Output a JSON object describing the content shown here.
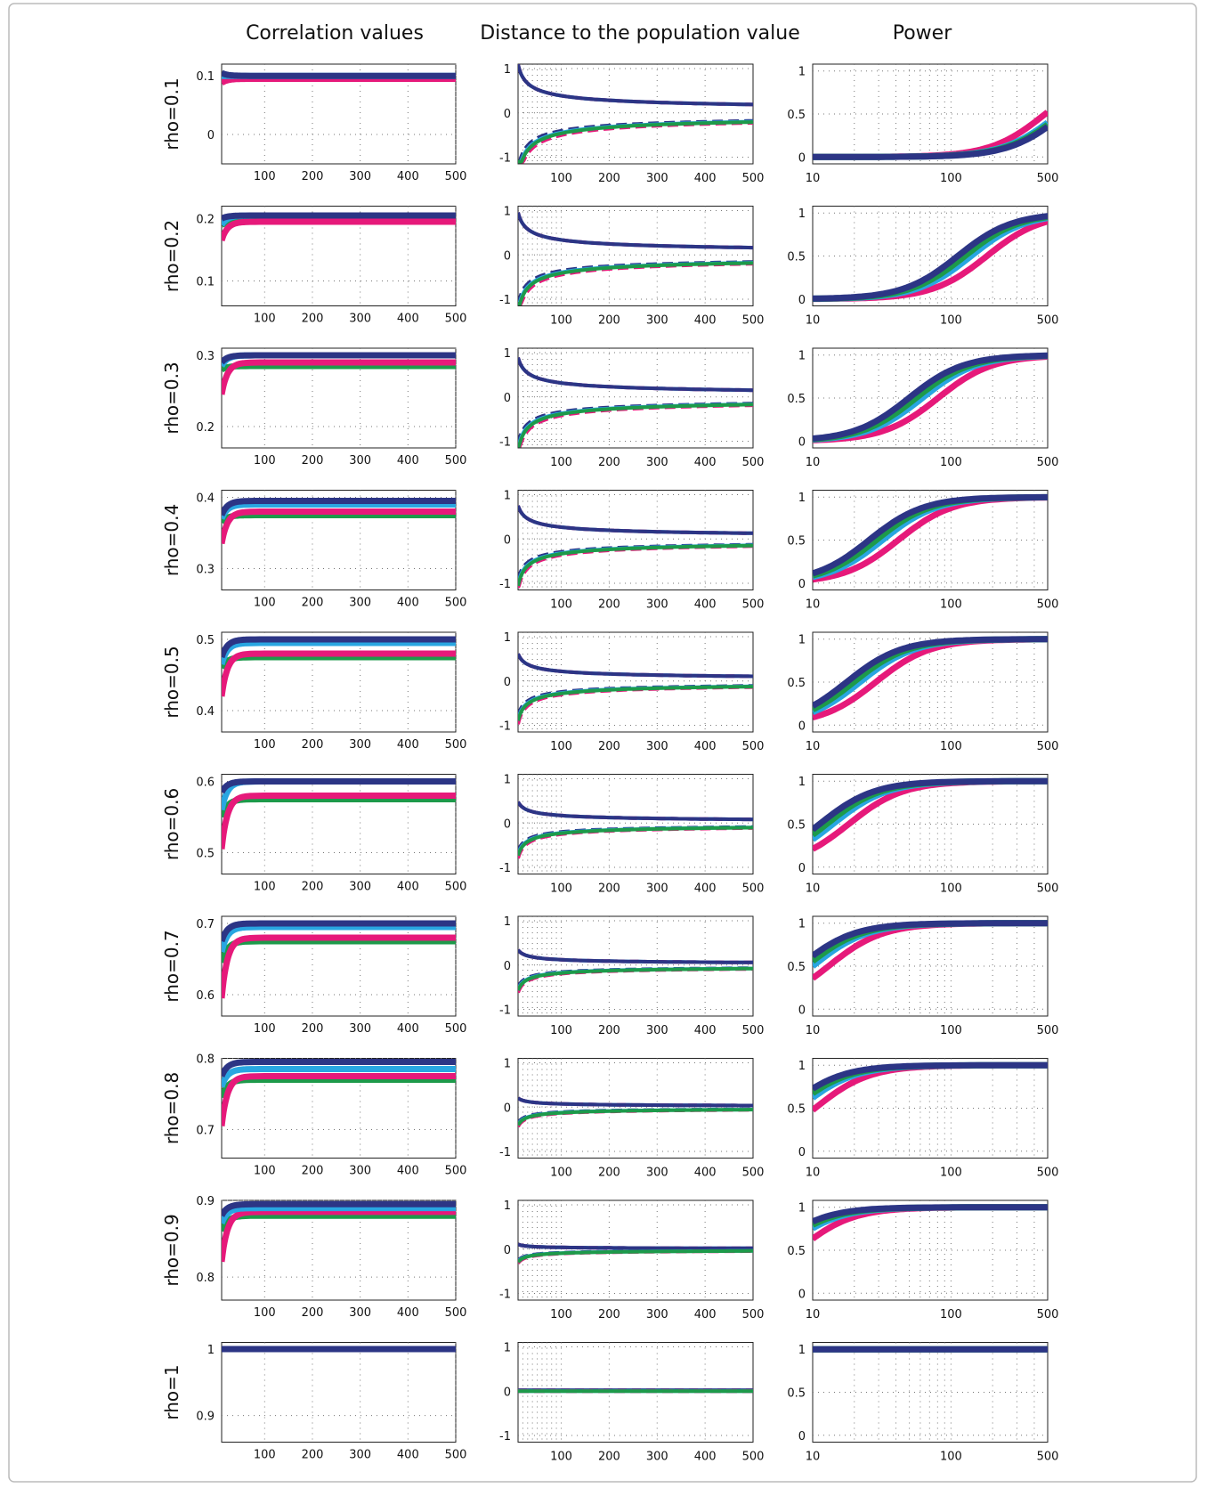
{
  "colors": {
    "navy": "#2c3585",
    "cyan": "#29a6e1",
    "magenta": "#e6197a",
    "green": "#1d9a4a",
    "orange": "#e5a23a"
  },
  "chart_data": {
    "type": "line",
    "column_titles": [
      "Correlation values",
      "Distance to the population value",
      "Power"
    ],
    "series_colors": [
      "navy",
      "cyan",
      "magenta",
      "green"
    ],
    "x_ticks_linear": [
      100,
      200,
      300,
      400,
      500
    ],
    "x_ticks_log": [
      10,
      100,
      500
    ],
    "x_range": [
      10,
      500
    ],
    "rows": [
      {
        "label": "rho=0.1",
        "rho": 0.1,
        "corr_ylim": [
          -0.05,
          0.12
        ],
        "corr_yticks": [
          0,
          0.1
        ],
        "corr_levels": [
          0.1,
          0.1,
          0.095,
          0.095
        ],
        "corr_start": [
          0.105,
          0.1,
          0.088,
          0.097
        ],
        "distance": 0.8,
        "power_x50": 600,
        "power_offsets": [
          1.1,
          1.0,
          0.8,
          1.05
        ]
      },
      {
        "label": "rho=0.2",
        "rho": 0.2,
        "corr_ylim": [
          0.06,
          0.22
        ],
        "corr_yticks": [
          0.1,
          0.2
        ],
        "corr_levels": [
          0.205,
          0.205,
          0.195,
          0.195
        ],
        "corr_start": [
          0.2,
          0.19,
          0.165,
          0.19
        ],
        "distance": 0.7,
        "power_x50": 140,
        "power_offsets": [
          0.8,
          1.0,
          1.3,
          0.9
        ]
      },
      {
        "label": "rho=0.3",
        "rho": 0.3,
        "corr_ylim": [
          0.17,
          0.31
        ],
        "corr_yticks": [
          0.2,
          0.3
        ],
        "corr_levels": [
          0.3,
          0.3,
          0.29,
          0.285
        ],
        "corr_start": [
          0.29,
          0.285,
          0.245,
          0.28
        ],
        "distance": 0.65,
        "power_x50": 62,
        "power_offsets": [
          0.8,
          1.0,
          1.3,
          0.9
        ]
      },
      {
        "label": "rho=0.4",
        "rho": 0.4,
        "corr_ylim": [
          0.27,
          0.41
        ],
        "corr_yticks": [
          0.3,
          0.4
        ],
        "corr_levels": [
          0.395,
          0.39,
          0.38,
          0.375
        ],
        "corr_start": [
          0.375,
          0.37,
          0.335,
          0.365
        ],
        "distance": 0.55,
        "power_x50": 32,
        "power_offsets": [
          0.8,
          1.0,
          1.3,
          0.9
        ]
      },
      {
        "label": "rho=0.5",
        "rho": 0.5,
        "corr_ylim": [
          0.37,
          0.51
        ],
        "corr_yticks": [
          0.4,
          0.5
        ],
        "corr_levels": [
          0.5,
          0.495,
          0.48,
          0.475
        ],
        "corr_start": [
          0.475,
          0.465,
          0.42,
          0.46
        ],
        "distance": 0.45,
        "power_x50": 22,
        "power_offsets": [
          0.8,
          1.0,
          1.3,
          0.9
        ]
      },
      {
        "label": "rho=0.6",
        "rho": 0.6,
        "corr_ylim": [
          0.47,
          0.61
        ],
        "corr_yticks": [
          0.5,
          0.6
        ],
        "corr_levels": [
          0.6,
          0.6,
          0.58,
          0.575
        ],
        "corr_start": [
          0.585,
          0.56,
          0.505,
          0.55
        ],
        "distance": 0.35,
        "power_x50": 14,
        "power_offsets": [
          0.8,
          1.0,
          1.3,
          0.9
        ]
      },
      {
        "label": "rho=0.7",
        "rho": 0.7,
        "corr_ylim": [
          0.57,
          0.71
        ],
        "corr_yticks": [
          0.6,
          0.7
        ],
        "corr_levels": [
          0.7,
          0.695,
          0.68,
          0.675
        ],
        "corr_start": [
          0.675,
          0.66,
          0.595,
          0.645
        ],
        "distance": 0.25,
        "power_x50": 10,
        "power_offsets": [
          0.8,
          1.0,
          1.3,
          0.9
        ]
      },
      {
        "label": "rho=0.8",
        "rho": 0.8,
        "corr_ylim": [
          0.66,
          0.8
        ],
        "corr_yticks": [
          0.7,
          0.8
        ],
        "corr_levels": [
          0.795,
          0.785,
          0.775,
          0.77
        ],
        "corr_start": [
          0.775,
          0.76,
          0.705,
          0.745
        ],
        "distance": 0.15,
        "power_x50": 8,
        "power_offsets": [
          0.8,
          1.0,
          1.3,
          0.9
        ]
      },
      {
        "label": "rho=0.9",
        "rho": 0.9,
        "corr_ylim": [
          0.77,
          0.9
        ],
        "corr_yticks": [
          0.8,
          0.9
        ],
        "corr_levels": [
          0.895,
          0.89,
          0.885,
          0.88
        ],
        "corr_start": [
          0.88,
          0.87,
          0.82,
          0.86
        ],
        "distance": 0.08,
        "power_x50": 6,
        "power_offsets": [
          0.8,
          1.0,
          1.3,
          0.9
        ]
      },
      {
        "label": "rho=1",
        "rho": 1.0,
        "corr_ylim": [
          0.86,
          1.01
        ],
        "corr_yticks": [
          0.9,
          1
        ],
        "corr_levels": [
          1,
          1,
          1,
          1
        ],
        "corr_start": [
          1,
          1,
          1,
          1
        ],
        "distance": 0.0,
        "power_x50": 1,
        "power_offsets": [
          1,
          1,
          1,
          1
        ]
      }
    ],
    "distance_yticks": [
      -1,
      0,
      1
    ],
    "power_yticks": [
      0,
      0.5,
      1
    ]
  }
}
